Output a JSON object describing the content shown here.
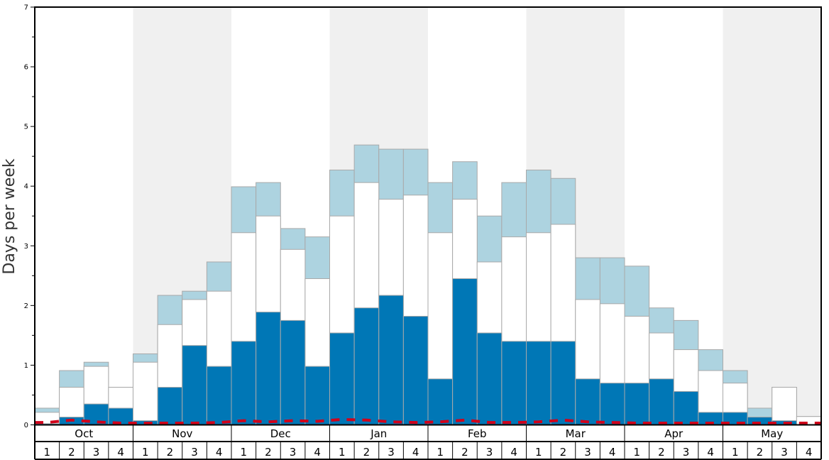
{
  "chart_data": {
    "type": "bar",
    "ylabel": "Days per week",
    "ylim": [
      0,
      7
    ],
    "yticks": [
      0,
      1,
      2,
      3,
      4,
      5,
      6,
      7
    ],
    "months": [
      "Oct",
      "Nov",
      "Dec",
      "Jan",
      "Feb",
      "Mar",
      "Apr",
      "May"
    ],
    "weeks": [
      "1",
      "2",
      "3",
      "4"
    ],
    "categories": [
      "Oct 1",
      "Oct 2",
      "Oct 3",
      "Oct 4",
      "Nov 1",
      "Nov 2",
      "Nov 3",
      "Nov 4",
      "Dec 1",
      "Dec 2",
      "Dec 3",
      "Dec 4",
      "Jan 1",
      "Jan 2",
      "Jan 3",
      "Jan 4",
      "Feb 1",
      "Feb 2",
      "Feb 3",
      "Feb 4",
      "Mar 1",
      "Mar 2",
      "Mar 3",
      "Mar 4",
      "Apr 1",
      "Apr 2",
      "Apr 3",
      "Apr 4",
      "May 1",
      "May 2",
      "May 3",
      "May 4"
    ],
    "series": [
      {
        "color": "#0077b6",
        "values": [
          0.02,
          0.13,
          0.35,
          0.28,
          0.07,
          0.63,
          1.33,
          0.98,
          1.4,
          1.89,
          1.75,
          0.98,
          1.54,
          1.96,
          2.17,
          1.82,
          0.77,
          2.45,
          1.54,
          1.4,
          1.4,
          1.4,
          0.77,
          0.7,
          0.7,
          0.77,
          0.56,
          0.21,
          0.21,
          0.13,
          0.07,
          0.0
        ]
      },
      {
        "color": "#ffffff",
        "values": [
          0.21,
          0.63,
          0.98,
          0.63,
          1.05,
          1.68,
          2.1,
          2.24,
          3.22,
          3.5,
          2.94,
          2.45,
          3.5,
          4.06,
          3.78,
          3.85,
          3.22,
          3.78,
          2.73,
          3.15,
          3.22,
          3.36,
          2.1,
          2.03,
          1.82,
          1.54,
          1.26,
          0.91,
          0.7,
          0.13,
          0.63,
          0.14
        ]
      },
      {
        "color": "#add3e0",
        "values": [
          0.28,
          0.91,
          1.05,
          0.63,
          1.19,
          2.17,
          2.24,
          2.73,
          3.99,
          4.06,
          3.29,
          3.15,
          4.27,
          4.69,
          4.62,
          4.62,
          4.06,
          4.41,
          3.5,
          4.06,
          4.27,
          4.13,
          2.8,
          2.8,
          2.66,
          1.96,
          1.75,
          1.26,
          0.91,
          0.28,
          0.63,
          0.14
        ]
      }
    ],
    "average_line": {
      "color": "#d0021b",
      "style": "dashed",
      "values": [
        0.04,
        0.08,
        0.05,
        0.03,
        0.03,
        0.03,
        0.03,
        0.04,
        0.07,
        0.05,
        0.07,
        0.06,
        0.09,
        0.08,
        0.05,
        0.04,
        0.05,
        0.08,
        0.04,
        0.04,
        0.05,
        0.08,
        0.05,
        0.04,
        0.03,
        0.03,
        0.03,
        0.03,
        0.03,
        0.03,
        0.03,
        0.03
      ]
    },
    "shaded_months": [
      "Nov",
      "Jan",
      "Mar",
      "May"
    ],
    "shade_color": "#f0f0f0",
    "grid": false,
    "legend": "none"
  }
}
